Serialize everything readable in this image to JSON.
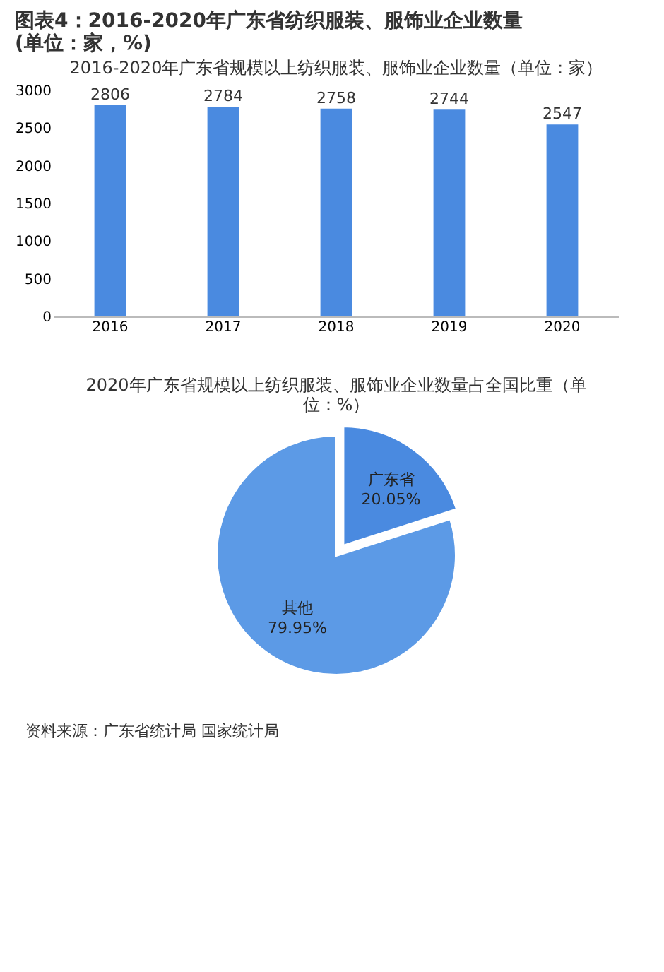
{
  "chart_data": [
    {
      "type": "bar",
      "title": "2016-2020年广东省规模以上纺织服装、服饰业企业数量（单位：家）",
      "annotations": [
        "图表4：2016-2020年广东省纺织服装、服饰业企业数量(单位：家，%)"
      ],
      "categories": [
        "2016",
        "2017",
        "2018",
        "2019",
        "2020"
      ],
      "values": [
        2806,
        2784,
        2758,
        2744,
        2547
      ],
      "color": "#4a8ae0",
      "ylim": [
        0,
        3000
      ],
      "yticks": [
        0,
        500,
        1000,
        1500,
        2000,
        2500,
        3000
      ],
      "grid": false,
      "data_labels": true
    },
    {
      "type": "pie",
      "title": "2020年广东省规模以上纺织服装、服饰业企业数量占全国比重（单位：%）",
      "annotations": [
        "资料来源：广东省统计局 国家统计局"
      ],
      "categories": [
        "广东省",
        "其他"
      ],
      "values": [
        20.05,
        79.95
      ],
      "colors": [
        "#4a8ae0",
        "#5c9ae6"
      ],
      "value_labels": [
        "20.05%",
        "79.95%"
      ]
    }
  ]
}
